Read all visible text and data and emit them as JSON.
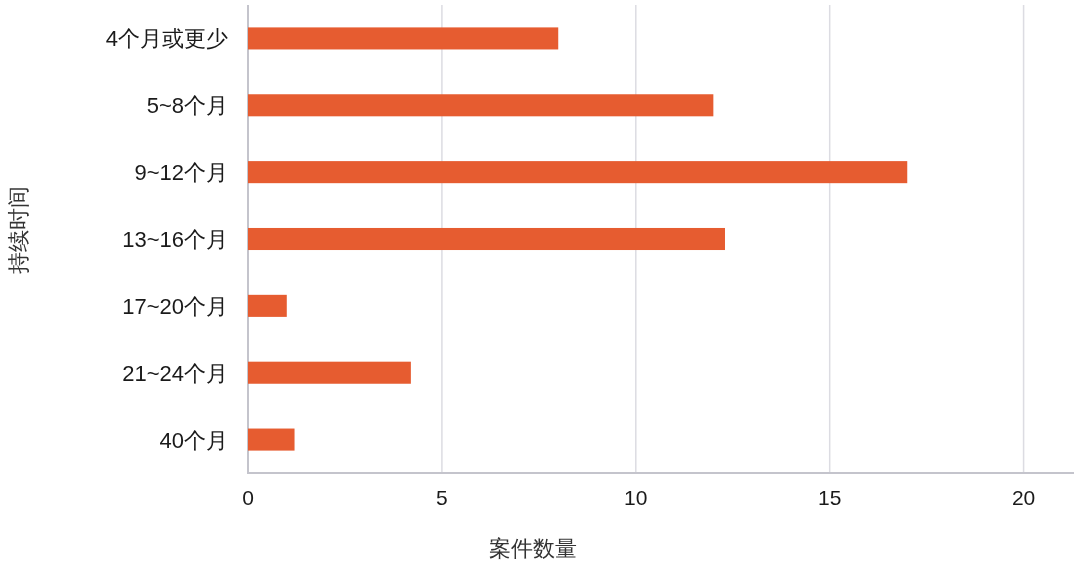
{
  "chart_data": {
    "type": "bar",
    "orientation": "horizontal",
    "xlabel": "案件数量",
    "ylabel": "持续时间",
    "categories": [
      "4个月或更少",
      "5~8个月",
      "9~12个月",
      "13~16个月",
      "17~20个月",
      "21~24个月",
      "40个月"
    ],
    "values": [
      8,
      12,
      17,
      12.3,
      1,
      4.2,
      1.2
    ],
    "color": "#e65c30",
    "xlim": [
      0,
      21.3
    ],
    "xticks": [
      0,
      5,
      10,
      15,
      20
    ],
    "grid": "x"
  }
}
